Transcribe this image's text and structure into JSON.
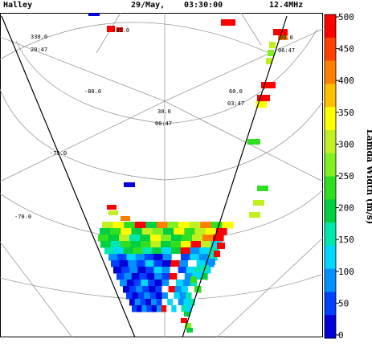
{
  "header": {
    "station": "Halley",
    "date": "29/May,",
    "time": "03:30:00",
    "frequency": "12.4MHz"
  },
  "map": {
    "grid_labels": [
      {
        "id": "lat-m80",
        "text": "-80.0"
      },
      {
        "id": "lat-m75",
        "text": "-75.0"
      },
      {
        "id": "lat-m70",
        "text": "-70.0"
      },
      {
        "id": "lon-330",
        "text": "330.0"
      },
      {
        "id": "mlt-2047",
        "text": "20:47"
      },
      {
        "id": "lat-m85",
        "text": "-85.0"
      },
      {
        "id": "lon-30",
        "text": "30.0"
      },
      {
        "id": "mlt-0047",
        "text": "00:47"
      },
      {
        "id": "lon-60",
        "text": "60.0"
      },
      {
        "id": "mlt-0347",
        "text": "03:47"
      },
      {
        "id": "lon-90",
        "text": "90.0"
      },
      {
        "id": "mlt-0647",
        "text": "06:47"
      }
    ],
    "parameter": "spectral width",
    "units": "m/s"
  },
  "colorbar": {
    "title": "Lamda Width (m/s)",
    "ticks": [
      "500",
      "450",
      "400",
      "350",
      "300",
      "250",
      "200",
      "150",
      "100",
      "50",
      "0"
    ],
    "range": [
      0,
      500
    ],
    "colors": [
      "#0000d8",
      "#0040ff",
      "#0090ff",
      "#00d8ff",
      "#00e8b0",
      "#00d040",
      "#30e020",
      "#80f020",
      "#c0f020",
      "#ffff00",
      "#ffc000",
      "#ff8000",
      "#ff4000",
      "#ff0000"
    ]
  }
}
